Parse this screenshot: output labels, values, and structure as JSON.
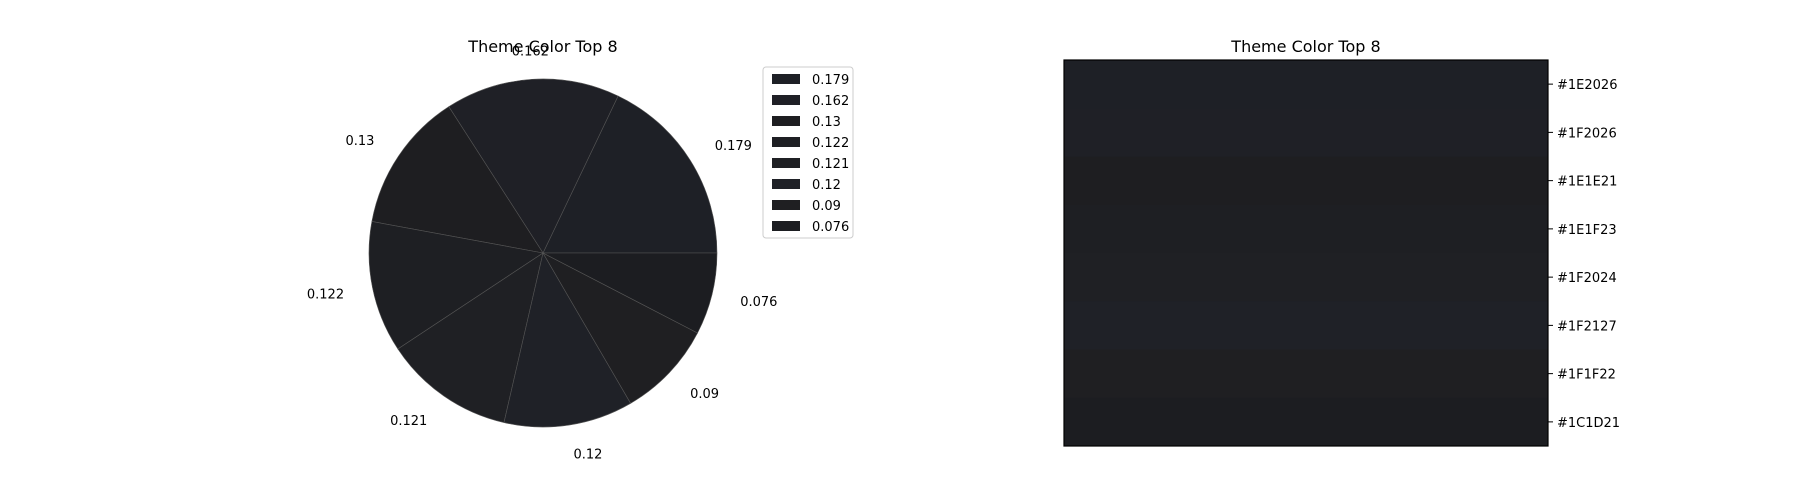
{
  "chart_data": [
    {
      "type": "pie",
      "title": "Theme Color Top 8",
      "legend_placement": "upper-right-outside",
      "slices": [
        {
          "value": 0.179,
          "label": "0.179",
          "color": "#1E2026"
        },
        {
          "value": 0.162,
          "label": "0.162",
          "color": "#1F2026"
        },
        {
          "value": 0.13,
          "label": "0.13",
          "color": "#1E1E21"
        },
        {
          "value": 0.122,
          "label": "0.122",
          "color": "#1E1F23"
        },
        {
          "value": 0.121,
          "label": "0.121",
          "color": "#1F2024"
        },
        {
          "value": 0.12,
          "label": "0.12",
          "color": "#1F2127"
        },
        {
          "value": 0.09,
          "label": "0.09",
          "color": "#1F1F22"
        },
        {
          "value": 0.076,
          "label": "0.076",
          "color": "#1C1D21"
        }
      ],
      "start_angle_deg": 0,
      "direction": "counterclockwise",
      "wedge_edge_color": "#555555"
    },
    {
      "type": "heatmap",
      "title": "Theme Color Top 8",
      "tick_position": "right",
      "rows": [
        {
          "label": "#1E2026",
          "color": "#1E2026"
        },
        {
          "label": "#1F2026",
          "color": "#1F2026"
        },
        {
          "label": "#1E1E21",
          "color": "#1E1E21"
        },
        {
          "label": "#1E1F23",
          "color": "#1E1F23"
        },
        {
          "label": "#1F2024",
          "color": "#1F2024"
        },
        {
          "label": "#1F2127",
          "color": "#1F2127"
        },
        {
          "label": "#1F1F22",
          "color": "#1F1F22"
        },
        {
          "label": "#1C1D21",
          "color": "#1C1D21"
        }
      ]
    }
  ]
}
